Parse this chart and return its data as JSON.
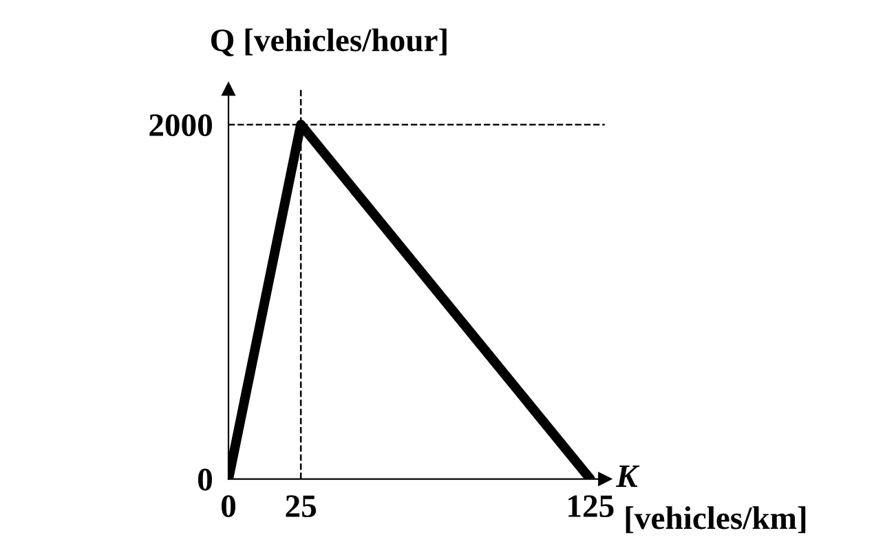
{
  "chart_data": {
    "type": "line",
    "ylabel": "Q [vehicles/hour]",
    "xlabel": "K",
    "annotations": [
      "[vehicles/km]"
    ],
    "x": [
      0,
      25,
      125
    ],
    "series": [
      {
        "color": "#000000",
        "values": [
          0,
          2000,
          0
        ]
      }
    ],
    "xlim": [
      0,
      130
    ],
    "ylim": [
      0,
      2200
    ],
    "xticks": [
      0,
      25,
      125
    ],
    "yticks": [
      0,
      2000
    ],
    "ref_lines": [
      {
        "axis": "x",
        "value": 25,
        "line_style": "dashed"
      },
      {
        "axis": "y",
        "value": 2000,
        "line_style": "dashed"
      }
    ],
    "grid": false,
    "legend": false,
    "marker": "none",
    "line_style": "solid"
  }
}
